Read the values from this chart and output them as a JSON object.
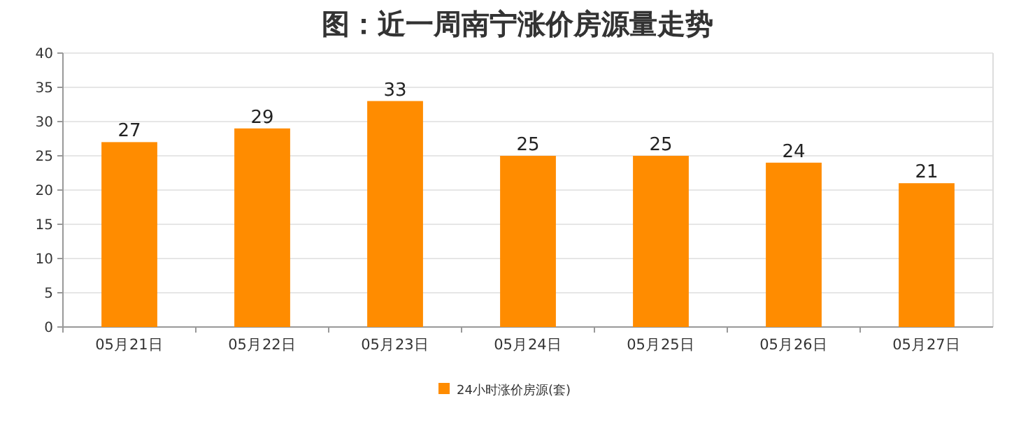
{
  "chart_data": {
    "type": "bar",
    "title": "图：近一周南宁涨价房源量走势",
    "categories": [
      "05月21日",
      "05月22日",
      "05月23日",
      "05月24日",
      "05月25日",
      "05月26日",
      "05月27日"
    ],
    "series": [
      {
        "name": "24小时涨价房源(套)",
        "color": "#ff8c00",
        "values": [
          27,
          29,
          33,
          25,
          25,
          24,
          21
        ]
      }
    ],
    "ylim": [
      0,
      40
    ],
    "yticks": [
      0,
      5,
      10,
      15,
      20,
      25,
      30,
      35,
      40
    ],
    "grid": "y",
    "legend": "bottom",
    "data_labels": true
  }
}
